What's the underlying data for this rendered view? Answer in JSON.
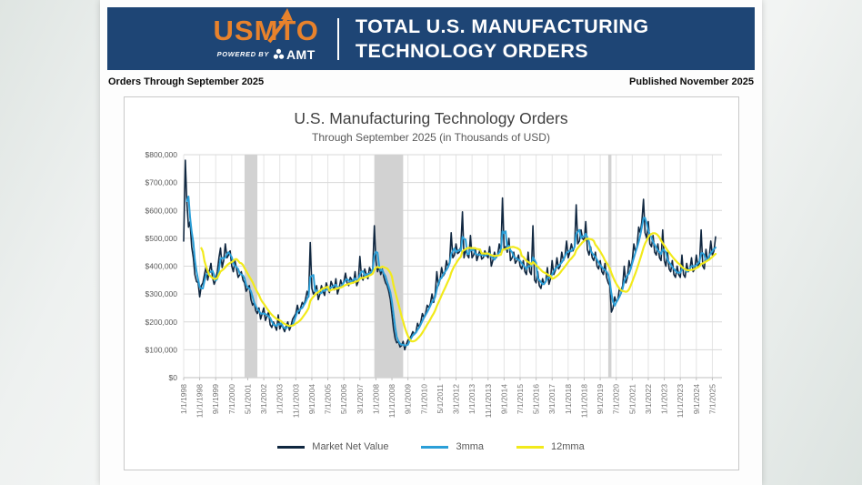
{
  "header": {
    "logo_text": "USMTO",
    "powered_by_label": "POWERED BY",
    "amt_label": "AMT",
    "title_line1": "TOTAL U.S. MANUFACTURING",
    "title_line2": "TECHNOLOGY ORDERS",
    "banner_color": "#1e4575",
    "logo_color": "#e8822c"
  },
  "subheader": {
    "left": "Orders Through September 2025",
    "right": "Published November 2025"
  },
  "chart_data": {
    "type": "line",
    "title": "U.S. Manufacturing Technology Orders",
    "subtitle": "Through September 2025 (in Thousands of USD)",
    "x_start": "1998-01",
    "x_end": "2025-09",
    "x_tick_interval_months": 10,
    "x_tick_labels": [
      "1/1/1998",
      "11/1/1998",
      "9/1/1999",
      "7/1/2000",
      "5/1/2001",
      "3/1/2002",
      "1/1/2003",
      "11/1/2003",
      "9/1/2004",
      "7/1/2005",
      "5/1/2006",
      "3/1/2007",
      "1/1/2008",
      "11/1/2008",
      "9/1/2009",
      "7/1/2010",
      "5/1/2011",
      "3/1/2012",
      "1/1/2013",
      "11/1/2013",
      "9/1/2014",
      "7/1/2015",
      "5/1/2016",
      "3/1/2017",
      "1/1/2018",
      "11/1/2018",
      "9/1/2019",
      "7/1/2020",
      "5/1/2021",
      "3/1/2022",
      "1/1/2023",
      "11/1/2023",
      "9/1/2024",
      "7/1/2025"
    ],
    "y_tick_labels": [
      "$0",
      "$100,000",
      "$200,000",
      "$300,000",
      "$400,000",
      "$500,000",
      "$600,000",
      "$700,000",
      "$800,000"
    ],
    "y_axis_unit": "thousands of USD",
    "values_unit": "millions of USD (axis label value / 1000)",
    "ylim": [
      0,
      800
    ],
    "grid": true,
    "legend_position": "bottom",
    "series": [
      {
        "name": "Market Net Value",
        "color_key": "market_net_value",
        "values": [
          490,
          780,
          630,
          540,
          560,
          470,
          430,
          370,
          345,
          340,
          290,
          330,
          340,
          370,
          400,
          350,
          380,
          410,
          360,
          335,
          350,
          380,
          430,
          465,
          395,
          420,
          480,
          430,
          440,
          455,
          400,
          380,
          420,
          390,
          360,
          370,
          380,
          350,
          340,
          310,
          320,
          330,
          280,
          260,
          270,
          240,
          230,
          250,
          210,
          230,
          250,
          205,
          220,
          235,
          190,
          180,
          200,
          185,
          170,
          225,
          175,
          190,
          180,
          165,
          185,
          200,
          170,
          185,
          210,
          220,
          230,
          260,
          230,
          250,
          270,
          260,
          280,
          310,
          290,
          485,
          320,
          300,
          310,
          330,
          280,
          300,
          330,
          310,
          295,
          340,
          320,
          305,
          345,
          330,
          315,
          355,
          300,
          320,
          350,
          330,
          345,
          375,
          340,
          330,
          360,
          350,
          340,
          380,
          330,
          345,
          435,
          360,
          350,
          390,
          370,
          355,
          395,
          380,
          390,
          545,
          420,
          380,
          400,
          370,
          390,
          360,
          340,
          330,
          310,
          280,
          230,
          175,
          140,
          125,
          130,
          110,
          115,
          130,
          100,
          120,
          135,
          140,
          150,
          165,
          155,
          165,
          195,
          180,
          200,
          230,
          215,
          230,
          260,
          250,
          265,
          300,
          270,
          300,
          380,
          330,
          350,
          395,
          365,
          375,
          420,
          395,
          415,
          520,
          430,
          440,
          480,
          445,
          450,
          470,
          595,
          430,
          460,
          440,
          430,
          510,
          430,
          440,
          465,
          420,
          440,
          460,
          425,
          430,
          455,
          440,
          430,
          470,
          400,
          420,
          450,
          430,
          440,
          480,
          450,
          645,
          460,
          470,
          450,
          500,
          420,
          430,
          450,
          410,
          420,
          440,
          400,
          390,
          420,
          380,
          370,
          450,
          380,
          370,
          545,
          350,
          340,
          380,
          330,
          320,
          355,
          335,
          345,
          395,
          335,
          355,
          420,
          370,
          385,
          430,
          390,
          400,
          450,
          420,
          435,
          490,
          430,
          450,
          480,
          455,
          470,
          620,
          480,
          490,
          530,
          500,
          490,
          560,
          460,
          440,
          470,
          430,
          420,
          450,
          400,
          390,
          420,
          380,
          370,
          410,
          360,
          340,
          330,
          235,
          250,
          290,
          270,
          280,
          320,
          310,
          330,
          400,
          340,
          360,
          420,
          390,
          420,
          480,
          450,
          470,
          540,
          520,
          560,
          640,
          520,
          500,
          560,
          480,
          470,
          510,
          450,
          440,
          480,
          430,
          420,
          530,
          420,
          400,
          450,
          390,
          380,
          420,
          370,
          360,
          400,
          370,
          360,
          440,
          370,
          360,
          410,
          380,
          390,
          430,
          380,
          390,
          440,
          400,
          410,
          530,
          400,
          390,
          460,
          420,
          430,
          490,
          440,
          455,
          505
        ]
      },
      {
        "name": "3mma",
        "color_key": "mma3",
        "derived_from": "Market Net Value",
        "window_months": 3
      },
      {
        "name": "12mma",
        "color_key": "mma12",
        "derived_from": "Market Net Value",
        "window_months": 12
      }
    ],
    "recession_bands": [
      {
        "label": "2001 recession",
        "start": "2001-03",
        "end": "2001-11",
        "start_index": 38,
        "end_index": 46
      },
      {
        "label": "2008-2009 recession",
        "start": "2007-12",
        "end": "2009-06",
        "start_index": 119,
        "end_index": 137
      },
      {
        "label": "2020 recession",
        "start": "2020-02",
        "end": "2020-04",
        "start_index": 265,
        "end_index": 267
      }
    ],
    "colors": {
      "market_net_value": "#102740",
      "mma3": "#2b9fd8",
      "mma12": "#f2ea1b",
      "recession_band": "#d2d2d2",
      "gridline": "#d9d9d9"
    }
  }
}
